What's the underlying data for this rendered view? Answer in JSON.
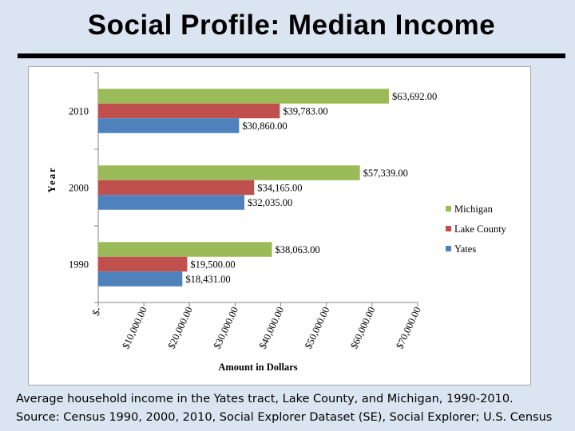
{
  "slide": {
    "title": "Social Profile: Median Income",
    "caption_line1": "Average household income in the Yates tract, Lake County, and Michigan, 1990-2010.",
    "caption_line2": "Source: Census 1990, 2000, 2010, Social Explorer Dataset (SE), Social Explorer; U.S. Census"
  },
  "chart_data": {
    "type": "bar",
    "orientation": "horizontal",
    "title": "",
    "xlabel": "Amount in Dollars",
    "ylabel": "Year",
    "categories": [
      "1990",
      "2000",
      "2010"
    ],
    "series": [
      {
        "name": "Yates",
        "color": "#4f81bd",
        "values": [
          18431,
          32035,
          30860
        ],
        "labels": [
          "$18,431.00",
          "$32,035.00",
          "$30,860.00"
        ]
      },
      {
        "name": "Lake County",
        "color": "#c0504d",
        "values": [
          19500,
          34165,
          39783
        ],
        "labels": [
          "$19,500.00",
          "$34,165.00",
          "$39,783.00"
        ]
      },
      {
        "name": "Michigan",
        "color": "#9bbb59",
        "values": [
          38063,
          57339,
          63692
        ],
        "labels": [
          "$38,063.00",
          "$57,339.00",
          "$63,692.00"
        ]
      }
    ],
    "xlim": [
      0,
      70000
    ],
    "xticks": [
      0,
      10000,
      20000,
      30000,
      40000,
      50000,
      60000,
      70000
    ],
    "xtick_labels": [
      "$-",
      "$10,000.00",
      "$20,000.00",
      "$30,000.00",
      "$40,000.00",
      "$50,000.00",
      "$60,000.00",
      "$70,000.00"
    ],
    "legend": {
      "position": "right",
      "order": [
        "Michigan",
        "Lake County",
        "Yates"
      ]
    },
    "grid": false
  }
}
